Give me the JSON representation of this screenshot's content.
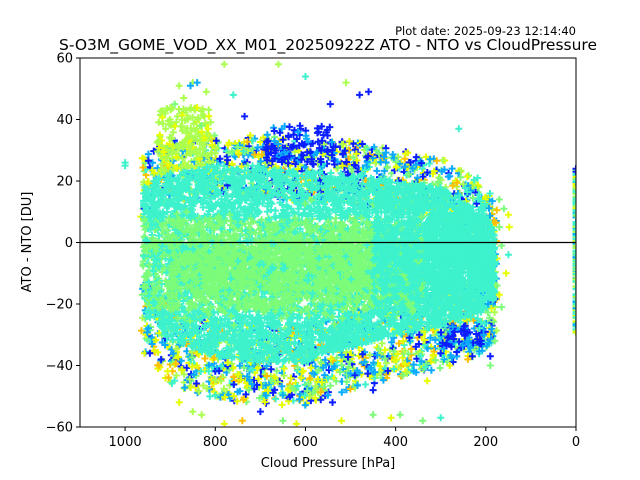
{
  "chart_data": {
    "type": "scatter",
    "title": "S-O3M_GOME_VOD_XX_M01_20250922Z ATO - NTO vs CloudPressure",
    "subtitle": "Plot date: 2025-09-23 12:14:40",
    "xlabel": "Cloud Pressure [hPa]",
    "ylabel": "ATO - NTO [DU]",
    "xlim": [
      1100,
      0
    ],
    "ylim": [
      -60,
      60
    ],
    "x_reversed": true,
    "xticks": [
      1000,
      800,
      600,
      400,
      200,
      0
    ],
    "xtick_labels": [
      "1000",
      "800",
      "600",
      "400",
      "200",
      "0"
    ],
    "yticks": [
      60,
      40,
      20,
      0,
      -20,
      -40,
      -60
    ],
    "ytick_labels": [
      "60",
      "40",
      "20",
      "0",
      "−20",
      "−40",
      "−60"
    ],
    "reference_line_y": 0,
    "grid": false,
    "marker": "+",
    "colormap": [
      "#0000ff",
      "#0a50ff",
      "#00b4ff",
      "#3cf0d2",
      "#46f5be",
      "#7dfc7a",
      "#a5ff55",
      "#e1ff14",
      "#ffff00",
      "#ffc400"
    ],
    "colors": {
      "blue": "#0a1eff",
      "cyan": "#0aaaff",
      "aqua": "#3df2cc",
      "green": "#7cfc78",
      "lime": "#aaff4f",
      "yellow": "#e6ff00",
      "orange": "#ffc000",
      "zero_line": "#000000"
    },
    "dense_cloud": {
      "x_range": [
        970,
        170
      ],
      "y_center": -5,
      "y_upper_edge": 20,
      "y_lower_edge": -30,
      "description_points": [
        {
          "x": 960,
          "y_top": 20,
          "y_bottom": -30
        },
        {
          "x": 900,
          "y_top": 25,
          "y_bottom": -40
        },
        {
          "x": 800,
          "y_top": 27,
          "y_bottom": -45
        },
        {
          "x": 700,
          "y_top": 27,
          "y_bottom": -47
        },
        {
          "x": 600,
          "y_top": 25,
          "y_bottom": -47
        },
        {
          "x": 500,
          "y_top": 25,
          "y_bottom": -42
        },
        {
          "x": 400,
          "y_top": 22,
          "y_bottom": -38
        },
        {
          "x": 300,
          "y_top": 20,
          "y_bottom": -35
        },
        {
          "x": 200,
          "y_top": 10,
          "y_bottom": -30
        },
        {
          "x": 175,
          "y_top": 5,
          "y_bottom": -25
        }
      ]
    },
    "edge_column": {
      "x": 0,
      "y_range": [
        -30,
        24
      ]
    },
    "series": [
      {
        "name": "outliers",
        "points": [
          [
            1000,
            26,
            "aqua"
          ],
          [
            1000,
            25,
            "aqua"
          ],
          [
            890,
            45,
            "green"
          ],
          [
            870,
            47,
            "lime"
          ],
          [
            880,
            51,
            "lime"
          ],
          [
            850,
            52,
            "lime"
          ],
          [
            855,
            51,
            "cyan"
          ],
          [
            840,
            52,
            "cyan"
          ],
          [
            820,
            49,
            "lime"
          ],
          [
            780,
            58,
            "lime"
          ],
          [
            660,
            58,
            "lime"
          ],
          [
            600,
            54,
            "aqua"
          ],
          [
            510,
            52,
            "lime"
          ],
          [
            480,
            48,
            "blue"
          ],
          [
            460,
            49,
            "blue"
          ],
          [
            545,
            45,
            "blue"
          ],
          [
            735,
            41,
            "blue"
          ],
          [
            760,
            48,
            "aqua"
          ],
          [
            830,
            38,
            "green"
          ],
          [
            900,
            40,
            "lime"
          ],
          [
            910,
            37,
            "lime"
          ],
          [
            260,
            37,
            "aqua"
          ],
          [
            170,
            14,
            "green"
          ],
          [
            160,
            11,
            "green"
          ],
          [
            150,
            9,
            "yellow"
          ],
          [
            170,
            5,
            "green"
          ],
          [
            148,
            5,
            "yellow"
          ],
          [
            165,
            -1,
            "green"
          ],
          [
            150,
            -4,
            "aqua"
          ],
          [
            155,
            -10,
            "yellow"
          ],
          [
            170,
            -17,
            "yellow"
          ],
          [
            175,
            -14,
            "green"
          ],
          [
            165,
            -21,
            "green"
          ],
          [
            180,
            -32,
            "green"
          ],
          [
            190,
            -40,
            "green"
          ],
          [
            300,
            -57,
            "aqua"
          ],
          [
            340,
            -58,
            "green"
          ],
          [
            390,
            -56,
            "green"
          ],
          [
            410,
            -57,
            "yellow"
          ],
          [
            450,
            -56,
            "green"
          ],
          [
            520,
            -58,
            "yellow"
          ],
          [
            620,
            -59,
            "yellow"
          ],
          [
            650,
            -58,
            "green"
          ],
          [
            740,
            -58,
            "orange"
          ],
          [
            780,
            -59,
            "yellow"
          ],
          [
            830,
            -56,
            "lime"
          ],
          [
            850,
            -55,
            "lime"
          ],
          [
            880,
            -52,
            "yellow"
          ],
          [
            450,
            -48,
            "blue"
          ],
          [
            540,
            -52,
            "blue"
          ],
          [
            700,
            -55,
            "blue"
          ],
          [
            920,
            -38,
            "blue"
          ],
          [
            945,
            -36,
            "blue"
          ],
          [
            940,
            -33,
            "cyan"
          ],
          [
            330,
            -45,
            "yellow"
          ],
          [
            280,
            -40,
            "yellow"
          ],
          [
            240,
            -38,
            "orange"
          ],
          [
            230,
            -37,
            "blue"
          ],
          [
            210,
            -33,
            "blue"
          ],
          [
            205,
            -30,
            "cyan"
          ],
          [
            190,
            -37,
            "blue"
          ],
          [
            195,
            -20,
            "cyan"
          ],
          [
            300,
            -36,
            "blue"
          ]
        ]
      }
    ]
  }
}
